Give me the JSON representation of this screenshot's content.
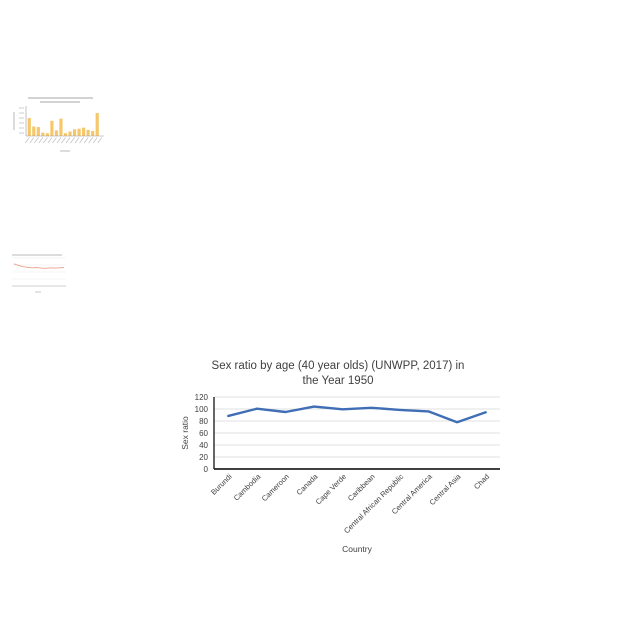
{
  "chart_data": [
    {
      "type": "bar",
      "title": "",
      "xlabel": "",
      "ylabel": "",
      "categories": [
        "",
        "",
        "",
        "",
        "",
        "",
        "",
        "",
        "",
        "",
        "",
        "",
        "",
        "",
        "",
        "",
        ""
      ],
      "values": [
        3.2,
        1.7,
        1.6,
        0.6,
        0.5,
        2.7,
        1.0,
        3.1,
        0.5,
        0.8,
        1.2,
        1.3,
        1.5,
        1.1,
        0.9,
        4.1,
        0.0
      ],
      "ylim": [
        0,
        5
      ],
      "colors": {
        "bar": "#f5c76a"
      },
      "grid": false
    },
    {
      "type": "line",
      "title": "",
      "xlabel": "",
      "ylabel": "",
      "x": [
        1,
        2,
        3,
        4,
        5,
        6,
        7,
        8,
        9,
        10,
        11,
        12
      ],
      "series": [
        {
          "values": [
            95,
            88,
            83,
            80,
            78,
            79,
            77,
            76,
            78,
            77,
            78,
            79
          ]
        }
      ],
      "ylim": [
        0,
        120
      ],
      "colors": {
        "line": "#e8a08a"
      },
      "grid": true
    },
    {
      "type": "line",
      "title": "Sex ratio by age (40 year olds) (UNWPP, 2017) in the Year 1950",
      "title_lines": [
        "Sex ratio by age (40 year olds) (UNWPP, 2017) in",
        "the Year 1950"
      ],
      "xlabel": "Country",
      "ylabel": "Sex ratio",
      "categories": [
        "Burundi",
        "Cambodia",
        "Cameroon",
        "Canada",
        "Cape Verde",
        "Caribbean",
        "Central African Republic",
        "Central America",
        "Central Asia",
        "Chad"
      ],
      "series": [
        {
          "values": [
            88.5,
            100.5,
            95,
            104,
            99.5,
            102,
            98.5,
            96,
            78,
            94.5
          ]
        }
      ],
      "ylim": [
        0,
        120
      ],
      "yticks": [
        0,
        20,
        40,
        60,
        80,
        100,
        120
      ],
      "grid": true,
      "legend": "none",
      "colors": {
        "line": "#3f6eb5",
        "grid": "#d9d9d9",
        "axis": "#000000",
        "text": "#404040"
      }
    }
  ]
}
